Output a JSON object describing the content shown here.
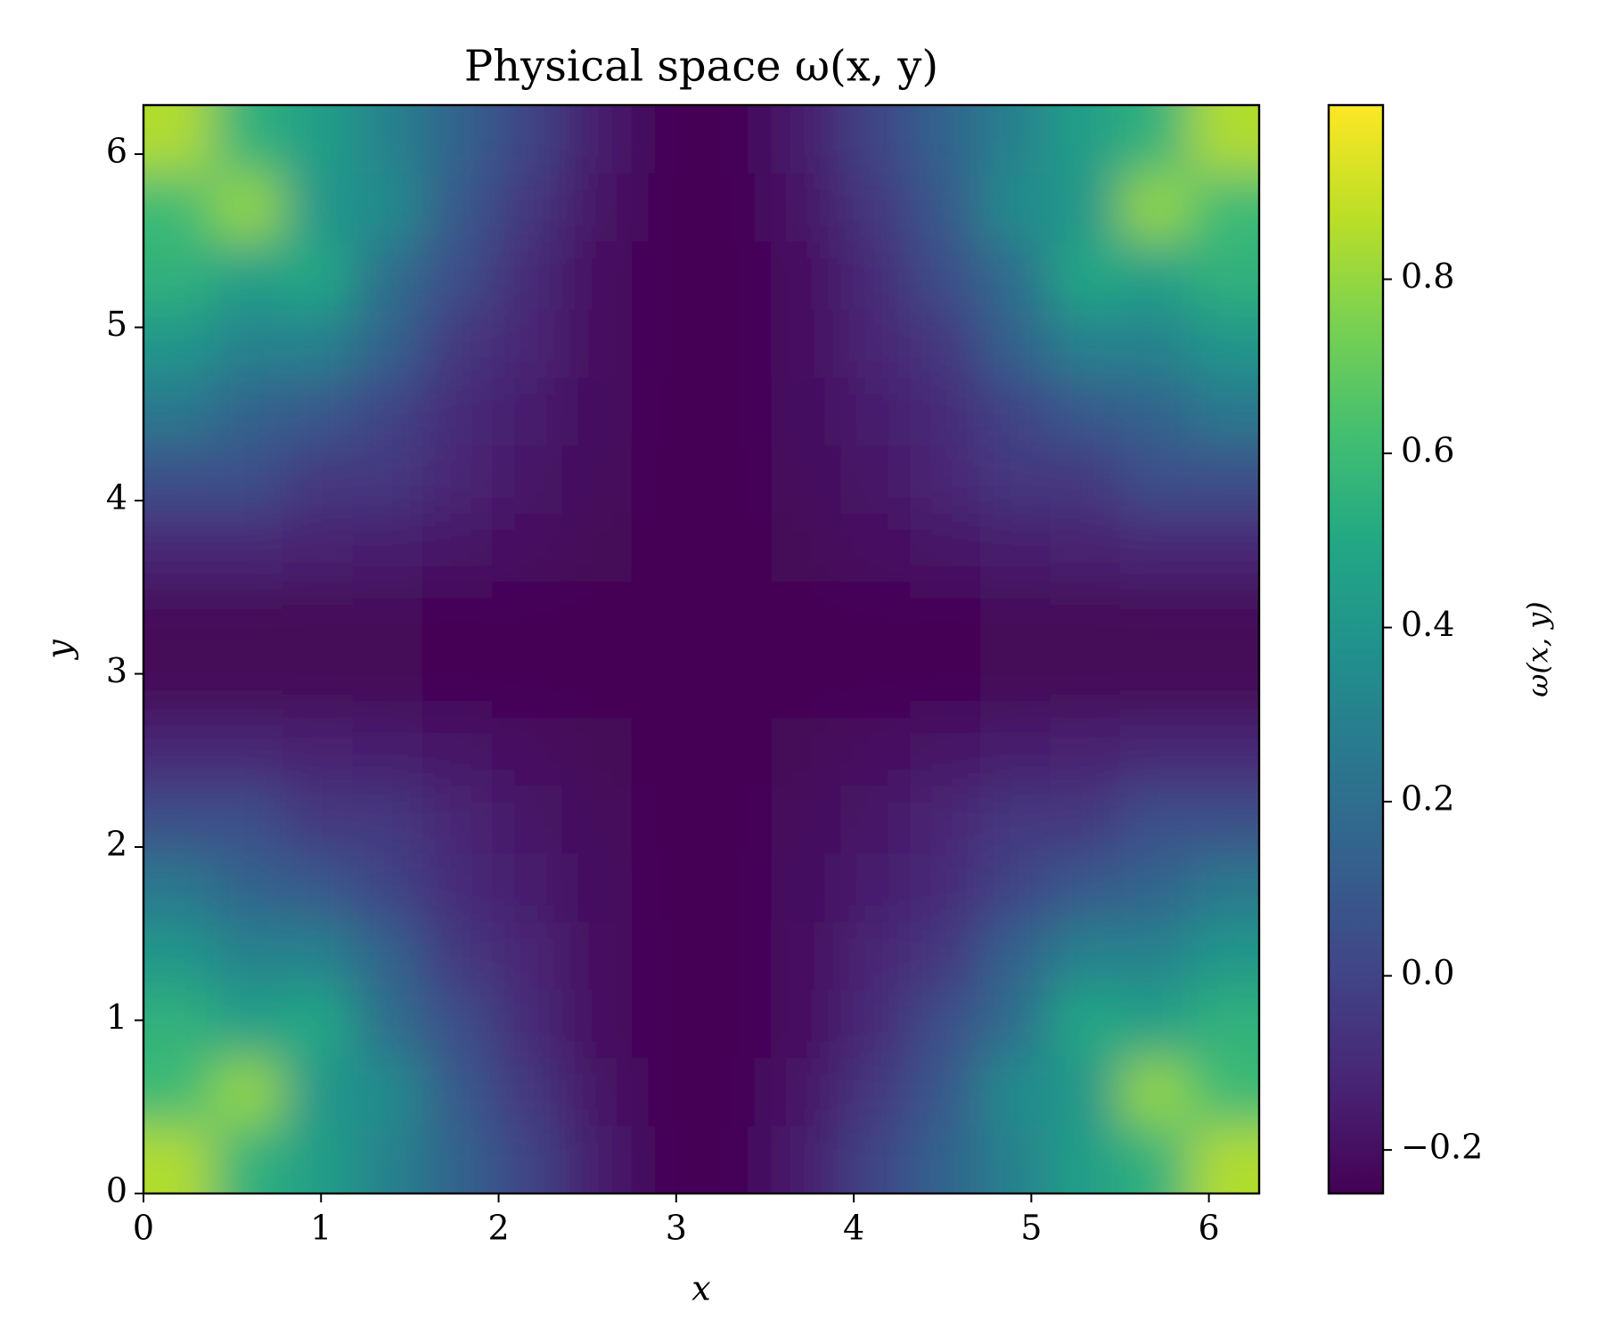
{
  "chart_data": {
    "type": "heatmap",
    "title": "Physical space ω(x, y)",
    "x_label": "x",
    "y_label": "y",
    "colorbar_label": "ω(x, y)",
    "colormap": "viridis",
    "x": [
      0.196,
      0.589,
      0.982,
      1.374,
      1.767,
      2.16,
      2.553,
      2.945,
      3.338,
      3.731,
      4.123,
      4.516,
      4.909,
      5.301,
      5.694,
      6.087
    ],
    "y": [
      0.196,
      0.589,
      0.982,
      1.374,
      1.767,
      2.16,
      2.553,
      2.945,
      3.338,
      3.731,
      4.123,
      4.516,
      4.909,
      5.301,
      5.694,
      6.087
    ],
    "z": [
      [
        0.85,
        0.55,
        0.45,
        0.3,
        0.15,
        0.0,
        -0.15,
        -0.24,
        -0.24,
        -0.15,
        0.0,
        0.15,
        0.3,
        0.45,
        0.55,
        0.85
      ],
      [
        0.6,
        0.8,
        0.4,
        0.35,
        0.1,
        -0.05,
        -0.18,
        -0.24,
        -0.24,
        -0.18,
        -0.05,
        0.1,
        0.35,
        0.4,
        0.8,
        0.6
      ],
      [
        0.55,
        0.45,
        0.5,
        0.2,
        0.05,
        -0.1,
        -0.2,
        -0.24,
        -0.24,
        -0.2,
        -0.1,
        0.05,
        0.2,
        0.5,
        0.45,
        0.55
      ],
      [
        0.4,
        0.3,
        0.3,
        0.15,
        -0.05,
        -0.12,
        -0.2,
        -0.24,
        -0.24,
        -0.2,
        -0.12,
        -0.05,
        0.15,
        0.3,
        0.3,
        0.4
      ],
      [
        0.25,
        0.15,
        0.1,
        0.0,
        -0.1,
        -0.15,
        -0.21,
        -0.24,
        -0.24,
        -0.21,
        -0.15,
        -0.1,
        0.0,
        0.1,
        0.15,
        0.25
      ],
      [
        0.05,
        0.05,
        -0.05,
        -0.05,
        -0.12,
        -0.18,
        -0.22,
        -0.24,
        -0.24,
        -0.22,
        -0.18,
        -0.12,
        -0.05,
        -0.05,
        0.05,
        0.05
      ],
      [
        -0.12,
        -0.12,
        -0.14,
        -0.15,
        -0.18,
        -0.2,
        -0.23,
        -0.24,
        -0.24,
        -0.23,
        -0.2,
        -0.18,
        -0.15,
        -0.14,
        -0.12,
        -0.12
      ],
      [
        -0.23,
        -0.23,
        -0.23,
        -0.23,
        -0.24,
        -0.24,
        -0.24,
        -0.25,
        -0.25,
        -0.24,
        -0.24,
        -0.24,
        -0.23,
        -0.23,
        -0.23,
        -0.23
      ],
      [
        -0.23,
        -0.23,
        -0.23,
        -0.23,
        -0.24,
        -0.24,
        -0.24,
        -0.25,
        -0.25,
        -0.24,
        -0.24,
        -0.24,
        -0.23,
        -0.23,
        -0.23,
        -0.23
      ],
      [
        -0.12,
        -0.12,
        -0.14,
        -0.15,
        -0.18,
        -0.2,
        -0.23,
        -0.24,
        -0.24,
        -0.23,
        -0.2,
        -0.18,
        -0.15,
        -0.14,
        -0.12,
        -0.12
      ],
      [
        0.05,
        0.05,
        -0.05,
        -0.05,
        -0.12,
        -0.18,
        -0.22,
        -0.24,
        -0.24,
        -0.22,
        -0.18,
        -0.12,
        -0.05,
        -0.05,
        0.05,
        0.05
      ],
      [
        0.25,
        0.15,
        0.1,
        0.0,
        -0.1,
        -0.15,
        -0.21,
        -0.24,
        -0.24,
        -0.21,
        -0.15,
        -0.1,
        0.0,
        0.1,
        0.15,
        0.25
      ],
      [
        0.4,
        0.3,
        0.3,
        0.15,
        -0.05,
        -0.12,
        -0.2,
        -0.24,
        -0.24,
        -0.2,
        -0.12,
        -0.05,
        0.15,
        0.3,
        0.3,
        0.4
      ],
      [
        0.55,
        0.45,
        0.5,
        0.2,
        0.05,
        -0.1,
        -0.2,
        -0.24,
        -0.24,
        -0.2,
        -0.1,
        0.05,
        0.2,
        0.5,
        0.45,
        0.55
      ],
      [
        0.6,
        0.8,
        0.4,
        0.35,
        0.1,
        -0.05,
        -0.18,
        -0.24,
        -0.24,
        -0.18,
        -0.05,
        0.1,
        0.35,
        0.4,
        0.8,
        0.6
      ],
      [
        0.85,
        0.55,
        0.45,
        0.3,
        0.15,
        0.0,
        -0.15,
        -0.24,
        -0.24,
        -0.15,
        0.0,
        0.15,
        0.3,
        0.45,
        0.55,
        0.85
      ]
    ],
    "xlim": [
      0,
      6.283
    ],
    "ylim": [
      0,
      6.283
    ],
    "xticks": [
      0,
      1,
      2,
      3,
      4,
      5,
      6
    ],
    "yticks": [
      0,
      1,
      2,
      3,
      4,
      5,
      6
    ],
    "clim": [
      -0.25,
      1.0
    ],
    "cticks": [
      {
        "value": -0.2,
        "label": "−0.2"
      },
      {
        "value": 0,
        "label": "0.0"
      },
      0.2,
      0.4,
      0.6,
      0.8
    ]
  }
}
